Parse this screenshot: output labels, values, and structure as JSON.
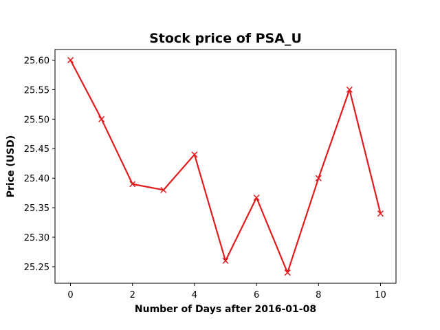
{
  "chart_data": {
    "type": "line",
    "title": "Stock price of PSA_U",
    "xlabel": "Number of Days after 2016-01-08",
    "ylabel": "Price (USD)",
    "x": [
      0,
      1,
      2,
      3,
      4,
      5,
      6,
      7,
      8,
      9,
      10
    ],
    "series": [
      {
        "values": [
          25.6,
          25.5,
          25.39,
          25.38,
          25.44,
          25.26,
          25.367,
          25.24,
          25.4,
          25.55,
          25.34
        ],
        "color": "#e31a1c",
        "marker": "x"
      }
    ],
    "xlim": [
      -0.5,
      10.5
    ],
    "ylim": [
      25.222,
      25.618
    ],
    "xticks": [
      0,
      2,
      4,
      6,
      8,
      10
    ],
    "xtick_labels": [
      "0",
      "2",
      "4",
      "6",
      "8",
      "10"
    ],
    "yticks": [
      25.25,
      25.3,
      25.35,
      25.4,
      25.45,
      25.5,
      25.55,
      25.6
    ],
    "ytick_labels": [
      "25.25",
      "25.30",
      "25.35",
      "25.40",
      "25.45",
      "25.50",
      "25.55",
      "25.60"
    ],
    "grid": false,
    "legend": false
  }
}
